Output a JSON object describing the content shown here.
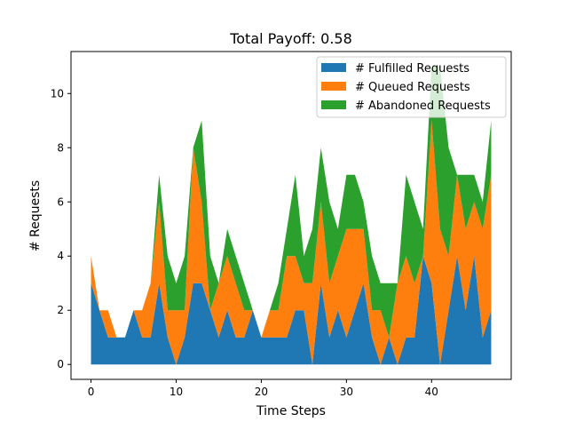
{
  "chart_data": {
    "type": "area",
    "stacked": true,
    "title": "Total Payoff: 0.58",
    "xlabel": "Time Steps",
    "ylabel": "# Requests",
    "xlim": [
      -2.35,
      49.35
    ],
    "ylim": [
      -0.55,
      11.55
    ],
    "xticks": [
      0,
      10,
      20,
      30,
      40
    ],
    "yticks": [
      0,
      2,
      4,
      6,
      8,
      10
    ],
    "legend_position": "top-right",
    "x": [
      0,
      1,
      2,
      3,
      4,
      5,
      6,
      7,
      8,
      9,
      10,
      11,
      12,
      13,
      14,
      15,
      16,
      17,
      18,
      19,
      20,
      21,
      22,
      23,
      24,
      25,
      26,
      27,
      28,
      29,
      30,
      31,
      32,
      33,
      34,
      35,
      36,
      37,
      38,
      39,
      40,
      41,
      42,
      43,
      44,
      45,
      46,
      47
    ],
    "series": [
      {
        "name": "# Fulfilled Requests",
        "color": "#1f77b4",
        "values": [
          3,
          2,
          1,
          1,
          1,
          2,
          1,
          1,
          3,
          1,
          0,
          1,
          3,
          3,
          2,
          1,
          2,
          1,
          1,
          2,
          1,
          1,
          1,
          1,
          2,
          2,
          0,
          3,
          1,
          2,
          1,
          2,
          3,
          1,
          0,
          1,
          0,
          1,
          1,
          4,
          3,
          0,
          2,
          4,
          2,
          4,
          1,
          2
        ]
      },
      {
        "name": "# Queued Requests",
        "color": "#ff7f0e",
        "values": [
          1,
          0,
          1,
          0,
          0,
          0,
          1,
          2,
          3,
          1,
          2,
          1,
          5,
          3,
          0,
          2,
          2,
          2,
          1,
          0,
          0,
          1,
          1,
          3,
          2,
          1,
          3,
          3,
          2,
          2,
          4,
          3,
          2,
          1,
          2,
          0,
          3,
          3,
          2,
          0,
          6,
          5,
          2,
          3,
          3,
          2,
          4,
          5
        ]
      },
      {
        "name": "# Abandoned Requests",
        "color": "#2ca02c",
        "values": [
          0,
          0,
          0,
          0,
          0,
          0,
          0,
          0,
          1,
          2,
          1,
          2,
          0,
          3,
          2,
          0,
          1,
          1,
          1,
          0,
          0,
          0,
          1,
          1,
          3,
          1,
          2,
          2,
          3,
          1,
          2,
          2,
          1,
          2,
          1,
          2,
          0,
          3,
          3,
          1,
          2,
          6,
          4,
          0,
          2,
          1,
          1,
          2
        ]
      }
    ]
  }
}
